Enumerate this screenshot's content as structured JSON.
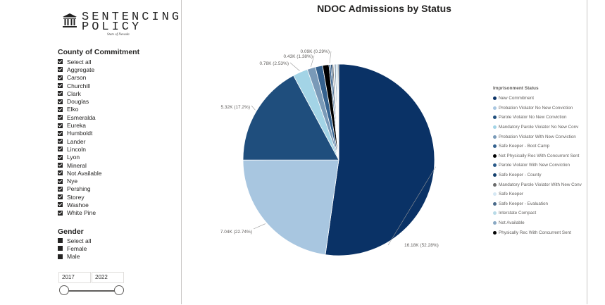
{
  "logo": {
    "line1": "SENTENCING",
    "line2": "POLICY",
    "sub": "State of Nevada"
  },
  "county_slicer": {
    "title": "County of Commitment",
    "options": [
      {
        "label": "Select all",
        "checked": true
      },
      {
        "label": "Aggregate",
        "checked": true
      },
      {
        "label": "Carson",
        "checked": true
      },
      {
        "label": "Churchill",
        "checked": true
      },
      {
        "label": "Clark",
        "checked": true
      },
      {
        "label": "Douglas",
        "checked": true
      },
      {
        "label": "Elko",
        "checked": true
      },
      {
        "label": "Esmeralda",
        "checked": true
      },
      {
        "label": "Eureka",
        "checked": true
      },
      {
        "label": "Humboldt",
        "checked": true
      },
      {
        "label": "Lander",
        "checked": true
      },
      {
        "label": "Lincoln",
        "checked": true
      },
      {
        "label": "Lyon",
        "checked": true
      },
      {
        "label": "Mineral",
        "checked": true
      },
      {
        "label": "Not Available",
        "checked": true
      },
      {
        "label": "Nye",
        "checked": true
      },
      {
        "label": "Pershing",
        "checked": true
      },
      {
        "label": "Storey",
        "checked": true
      },
      {
        "label": "Washoe",
        "checked": true
      },
      {
        "label": "White Pine",
        "checked": true
      }
    ]
  },
  "gender_slicer": {
    "title": "Gender",
    "options": [
      {
        "label": "Select all",
        "checked": false
      },
      {
        "label": "Female",
        "checked": false
      },
      {
        "label": "Male",
        "checked": false
      }
    ]
  },
  "year_slicer": {
    "start": "2017",
    "end": "2022"
  },
  "chart_data": {
    "type": "pie",
    "title": "NDOC Admissions by Status",
    "legend_title": "Imprisonment Status",
    "legend_position": "right",
    "slices": [
      {
        "label": "New Commitment",
        "value": 16.18,
        "percent": 52.28,
        "color": "#0a3266",
        "data_label": "16.18K (52.28%)"
      },
      {
        "label": "Probation Violator No New Conviction",
        "value": 7.04,
        "percent": 22.74,
        "color": "#a8c6e0",
        "data_label": "7.04K (22.74%)"
      },
      {
        "label": "Parole Violator No New Conviction",
        "value": 5.32,
        "percent": 17.2,
        "color": "#1f4e7d",
        "data_label": "5.32K (17.2%)"
      },
      {
        "label": "Mandatory Parole Violator No New Conv",
        "value": 0.78,
        "percent": 2.53,
        "color": "#a3d4e6",
        "data_label": "0.78K (2.53%)"
      },
      {
        "label": "Probation Violator With New Conviction",
        "value": 0.43,
        "percent": 1.38,
        "color": "#7a9ab8",
        "data_label": "0.43K (1.38%)"
      },
      {
        "label": "Safe Keeper - Boot Camp",
        "value": 0.38,
        "percent": 1.22,
        "color": "#35628f",
        "data_label": ""
      },
      {
        "label": "Not Physically Rec With Concurrent Sent",
        "value": 0.33,
        "percent": 1.06,
        "color": "#000000",
        "data_label": ""
      },
      {
        "label": "Parole Violator With New Conviction",
        "value": 0.09,
        "percent": 0.29,
        "color": "#2a5a8a",
        "data_label": "0.09K (0.29%)"
      },
      {
        "label": "Safe Keeper - County",
        "value": 0.08,
        "percent": 0.26,
        "color": "#14406e",
        "data_label": ""
      },
      {
        "label": "Mandatory Parole Violator With New Conv",
        "value": 0.07,
        "percent": 0.23,
        "color": "#6b6b6b",
        "data_label": ""
      },
      {
        "label": "Safe Keeper",
        "value": 0.06,
        "percent": 0.19,
        "color": "#d6e8f4",
        "data_label": ""
      },
      {
        "label": "Safe Keeper - Evaluation",
        "value": 0.06,
        "percent": 0.19,
        "color": "#4a6a8a",
        "data_label": ""
      },
      {
        "label": "Interstate Compact",
        "value": 0.06,
        "percent": 0.19,
        "color": "#b9dbe8",
        "data_label": ""
      },
      {
        "label": "Not Available",
        "value": 0.05,
        "percent": 0.16,
        "color": "#8aa9c4",
        "data_label": ""
      },
      {
        "label": "Physically Rec With Concurrent Sent",
        "value": 0.04,
        "percent": 0.13,
        "color": "#050505",
        "data_label": ""
      }
    ]
  }
}
